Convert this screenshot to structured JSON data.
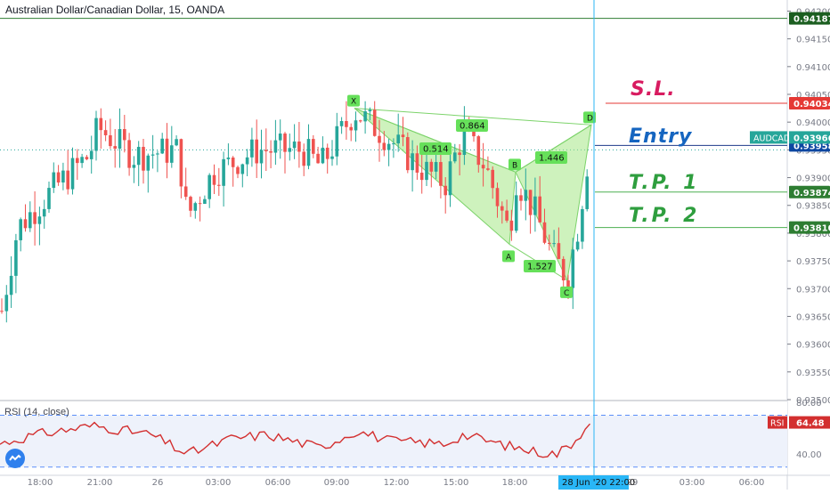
{
  "symbol_title": "Australian Dollar/Canadian Dollar, 15, OANDA",
  "rsi_title": "RSI (14, close)",
  "annotations": {
    "sl": "S.L.",
    "entry": "Entry",
    "tp1": "T.P. 1",
    "tp2": "T.P. 2"
  },
  "price_axis": {
    "min": 0.935,
    "max": 0.9422,
    "ticks": [
      "0.94200",
      "0.94150",
      "0.94100",
      "0.94050",
      "0.94000",
      "0.93950",
      "0.93900",
      "0.93850",
      "0.93800",
      "0.93750",
      "0.93700",
      "0.93650",
      "0.93600",
      "0.93550",
      "0.93500"
    ]
  },
  "rsi_axis": {
    "min": 25,
    "max": 80,
    "ticks": [
      "80.00",
      "40.00"
    ],
    "upper_band": 70,
    "lower_band": 30
  },
  "time_axis": {
    "labels": [
      "18:00",
      "21:00",
      "26",
      "03:00",
      "06:00",
      "09:00",
      "12:00",
      "15:00",
      "18:00",
      "29",
      "03:00",
      "06:00"
    ],
    "cursor_label": "28 Jun '20   22:00",
    "cursor_label_color": "#29b6f6"
  },
  "price_labels": [
    {
      "text": "0.94187",
      "value": 0.94187,
      "color": "#1b5e20",
      "line_color": "#2e7d32"
    },
    {
      "text": "0.94034",
      "value": 0.94034,
      "color": "#e53935",
      "line_color": "#e53935"
    },
    {
      "text": "0.93958",
      "value": 0.93958,
      "color": "#0d47a1",
      "line_color": "#1e3a8a"
    },
    {
      "text": "0.93874",
      "value": 0.93874,
      "color": "#2e7d32",
      "line_color": "#4caf50"
    },
    {
      "text": "0.93810",
      "value": 0.9381,
      "color": "#2e7d32",
      "line_color": "#4caf50"
    }
  ],
  "symbol_badge": {
    "name": "AUDCAD",
    "price": "0.93966",
    "color": "#26a69a"
  },
  "rsi_badge": {
    "name": "RSI",
    "value": "64.48",
    "color": "#d32f2f"
  },
  "harmonic_pattern": {
    "points": [
      {
        "label": "X",
        "value": 0.94025
      },
      {
        "label": "A",
        "value": 0.9378
      },
      {
        "label": "B",
        "value": 0.9391
      },
      {
        "label": "C",
        "value": 0.93715
      },
      {
        "label": "D",
        "value": 0.93995
      }
    ],
    "ratios": [
      "0.864",
      "0.514",
      "1.446",
      "1.527"
    ],
    "label_color": "#66e05a",
    "fill_color": "#a5e887"
  },
  "colors": {
    "bull": "#26a69a",
    "bear": "#ef5350",
    "rsi_line": "#d32f2f",
    "band": "#5b8ff9",
    "cursor": "#29b6f6"
  }
}
